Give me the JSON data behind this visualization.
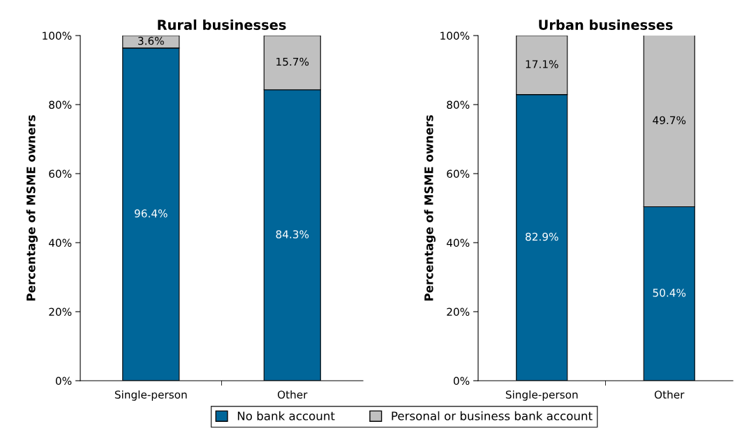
{
  "chart_data": [
    {
      "type": "bar",
      "title": "Rural businesses",
      "ylabel": "Percentage of MSME owners",
      "categories": [
        "Single-person",
        "Other"
      ],
      "stacked": true,
      "legend": "bottom",
      "grid": false,
      "series": [
        {
          "name": "No bank account",
          "color": "#006699",
          "values": [
            96.4,
            84.3
          ],
          "value_labels": [
            "96.4%",
            "84.3%"
          ]
        },
        {
          "name": "Personal or business bank account",
          "color": "#c0c0c0",
          "values": [
            3.6,
            15.7
          ],
          "value_labels": [
            "3.6%",
            "15.7%"
          ]
        }
      ],
      "ylim": [
        0,
        100
      ],
      "yticks": [
        {
          "value": 0,
          "label": "0%"
        },
        {
          "value": 20,
          "label": "20%"
        },
        {
          "value": 40,
          "label": "40%"
        },
        {
          "value": 60,
          "label": "60%"
        },
        {
          "value": 80,
          "label": "80%"
        },
        {
          "value": 100,
          "label": "100%"
        }
      ]
    },
    {
      "type": "bar",
      "title": "Urban businesses",
      "ylabel": "Percentage of MSME owners",
      "categories": [
        "Single-person",
        "Other"
      ],
      "stacked": true,
      "grid": false,
      "series": [
        {
          "color": "#006699",
          "values": [
            82.9,
            50.4
          ],
          "value_labels": [
            "82.9%",
            "50.4%"
          ]
        },
        {
          "color": "#c0c0c0",
          "values": [
            17.1,
            49.7
          ],
          "value_labels": [
            "17.1%",
            "49.7%"
          ]
        }
      ],
      "ylim": [
        0,
        100
      ],
      "yticks": [
        {
          "value": 0,
          "label": "0%"
        },
        {
          "value": 20,
          "label": "20%"
        },
        {
          "value": 40,
          "label": "40%"
        },
        {
          "value": 60,
          "label": "60%"
        },
        {
          "value": 80,
          "label": "80%"
        },
        {
          "value": 100,
          "label": "100%"
        }
      ]
    }
  ]
}
